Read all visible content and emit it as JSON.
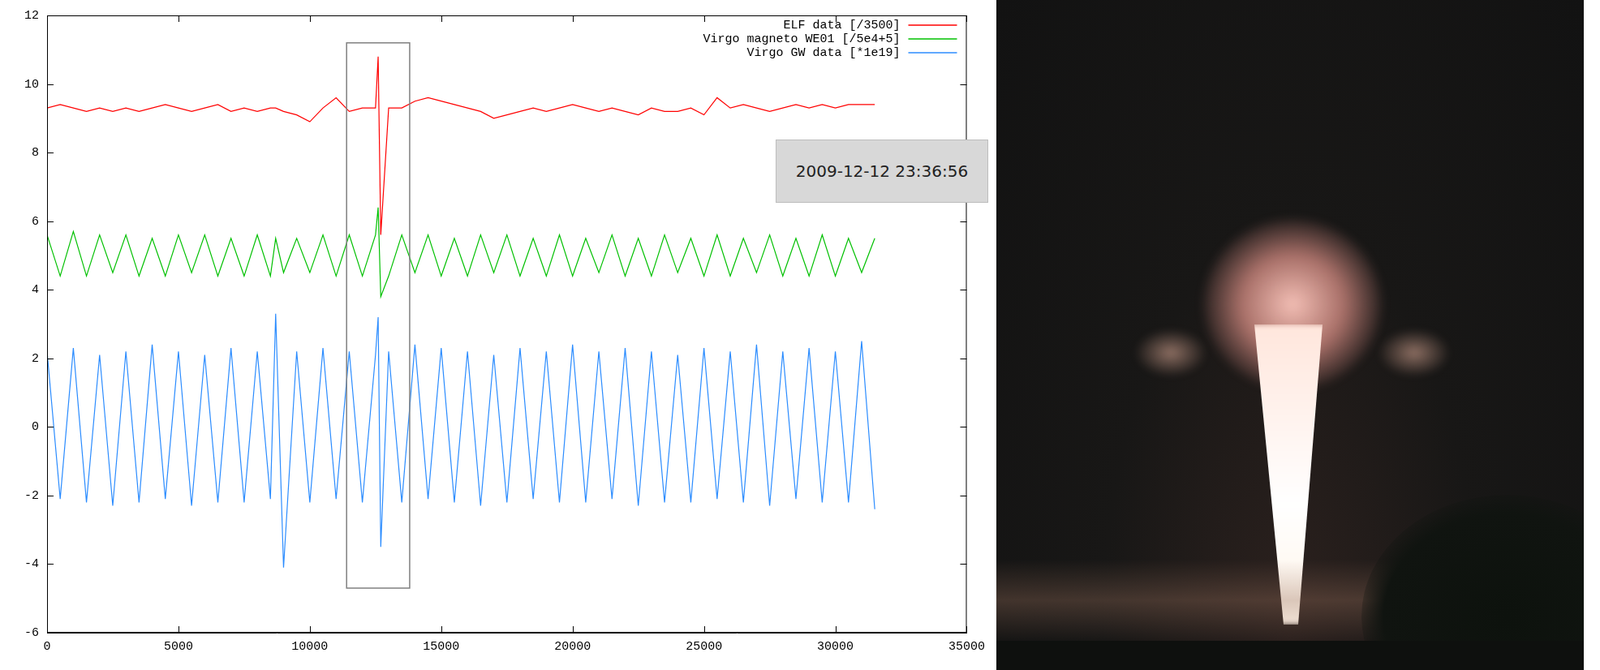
{
  "chart_data": {
    "type": "line",
    "x": [
      0,
      500,
      1000,
      1500,
      2000,
      2500,
      3000,
      3500,
      4000,
      4500,
      5000,
      5500,
      6000,
      6500,
      7000,
      7500,
      8000,
      8500,
      8700,
      9000,
      9500,
      10000,
      10500,
      11000,
      11500,
      12000,
      12500,
      12600,
      12700,
      13000,
      13500,
      14000,
      14500,
      15000,
      15500,
      16000,
      16500,
      17000,
      17500,
      18000,
      18500,
      19000,
      19500,
      20000,
      20500,
      21000,
      21500,
      22000,
      22500,
      23000,
      23500,
      24000,
      24500,
      25000,
      25500,
      26000,
      26500,
      27000,
      27500,
      28000,
      28500,
      29000,
      29500,
      30000,
      30500,
      31000,
      31500
    ],
    "series": [
      {
        "name": "ELF data [/3500]",
        "color": "#ff0000",
        "values": [
          9.3,
          9.4,
          9.3,
          9.2,
          9.3,
          9.2,
          9.3,
          9.2,
          9.3,
          9.4,
          9.3,
          9.2,
          9.3,
          9.4,
          9.2,
          9.3,
          9.2,
          9.3,
          9.3,
          9.2,
          9.1,
          8.9,
          9.3,
          9.6,
          9.2,
          9.3,
          9.3,
          10.8,
          5.6,
          9.3,
          9.3,
          9.5,
          9.6,
          9.5,
          9.4,
          9.3,
          9.2,
          9.0,
          9.1,
          9.2,
          9.3,
          9.2,
          9.3,
          9.4,
          9.3,
          9.2,
          9.3,
          9.2,
          9.1,
          9.3,
          9.2,
          9.2,
          9.3,
          9.1,
          9.6,
          9.3,
          9.4,
          9.3,
          9.2,
          9.3,
          9.4,
          9.3,
          9.4,
          9.3,
          9.4,
          9.4,
          9.4
        ]
      },
      {
        "name": "Virgo magneto WE01 [/5e4+5]",
        "color": "#00c000",
        "values": [
          5.6,
          4.4,
          5.7,
          4.4,
          5.6,
          4.5,
          5.6,
          4.4,
          5.5,
          4.4,
          5.6,
          4.5,
          5.6,
          4.4,
          5.5,
          4.4,
          5.6,
          4.4,
          5.5,
          4.5,
          5.5,
          4.5,
          5.6,
          4.4,
          5.6,
          4.4,
          5.6,
          6.4,
          3.8,
          4.4,
          5.6,
          4.5,
          5.6,
          4.4,
          5.5,
          4.4,
          5.6,
          4.5,
          5.6,
          4.4,
          5.5,
          4.4,
          5.6,
          4.4,
          5.5,
          4.5,
          5.6,
          4.4,
          5.5,
          4.4,
          5.6,
          4.5,
          5.5,
          4.4,
          5.6,
          4.4,
          5.5,
          4.5,
          5.6,
          4.4,
          5.5,
          4.4,
          5.6,
          4.4,
          5.5,
          4.5,
          5.5
        ]
      },
      {
        "name": "Virgo GW data [*1e19]",
        "color": "#2b8cff",
        "values": [
          2.2,
          -2.1,
          2.3,
          -2.2,
          2.1,
          -2.3,
          2.2,
          -2.2,
          2.4,
          -2.1,
          2.2,
          -2.3,
          2.1,
          -2.2,
          2.3,
          -2.2,
          2.2,
          -2.1,
          3.3,
          -4.1,
          2.2,
          -2.2,
          2.3,
          -2.1,
          2.2,
          -2.2,
          2.1,
          3.2,
          -3.5,
          2.2,
          -2.2,
          2.4,
          -2.1,
          2.3,
          -2.2,
          2.2,
          -2.3,
          2.1,
          -2.2,
          2.3,
          -2.1,
          2.2,
          -2.2,
          2.4,
          -2.2,
          2.2,
          -2.1,
          2.3,
          -2.3,
          2.2,
          -2.2,
          2.1,
          -2.2,
          2.3,
          -2.1,
          2.2,
          -2.2,
          2.4,
          -2.3,
          2.2,
          -2.1,
          2.3,
          -2.2,
          2.2,
          -2.2,
          2.5,
          -2.4
        ]
      }
    ],
    "xlim": [
      0,
      35000
    ],
    "xticks": [
      0,
      5000,
      10000,
      15000,
      20000,
      25000,
      30000,
      35000
    ],
    "ylim": [
      -6,
      12
    ],
    "yticks": [
      -6,
      -4,
      -2,
      0,
      2,
      4,
      6,
      8,
      10,
      12
    ],
    "grid": false,
    "legend": "top-right",
    "highlight": {
      "x": [
        11400,
        13800
      ],
      "y": [
        -4.7,
        11.2
      ]
    }
  },
  "timestamp": "2009-12-12 23:36:56"
}
